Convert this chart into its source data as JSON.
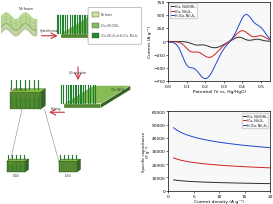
{
  "cv_legend": [
    "(Co, Ni)(OH)₂",
    "(Co, Ni)₃S₄",
    "H-(Co, Ni)₃S₄"
  ],
  "cv_colors": [
    "#2d2d2d",
    "#cc2222",
    "#2244cc"
  ],
  "cv_xlabel": "Potential (V vs. Hg/HgO)",
  "cv_ylabel": "Current (A g⁻¹)",
  "cv_xlim": [
    0.0,
    0.55
  ],
  "cv_ylim": [
    -750,
    750
  ],
  "cv_xticks": [
    0.0,
    0.1,
    0.2,
    0.3,
    0.4,
    0.5
  ],
  "cv_yticks": [
    -750,
    -500,
    -250,
    0,
    250,
    500,
    750
  ],
  "sc_legend": [
    "(Co, Ni)(OH)₂",
    "(Co, Ni)₃S₄",
    "H-(Co, Ni)₃S₄"
  ],
  "sc_colors": [
    "#2d2d2d",
    "#cc2222",
    "#2244cc"
  ],
  "sc_xlabel": "Current density (A g⁻¹)",
  "sc_ylabel": "Specific capacitance\n(F g⁻¹)",
  "sc_xlim": [
    0,
    20
  ],
  "sc_ylim": [
    0,
    60000
  ],
  "sc_xticks": [
    0,
    5,
    10,
    15,
    20
  ],
  "sc_yticks": [
    0,
    10000,
    20000,
    30000,
    40000,
    50000,
    60000
  ],
  "legend_items": [
    "Ni foam",
    "(Co, Ni)(OH)₂",
    "(Co, Ni)₃S₄ or H-(Co, Ni)₃S₄"
  ],
  "legend_colors": [
    "#c8e6a0",
    "#88bb66",
    "#228833"
  ],
  "bg_color": "#ffffff"
}
